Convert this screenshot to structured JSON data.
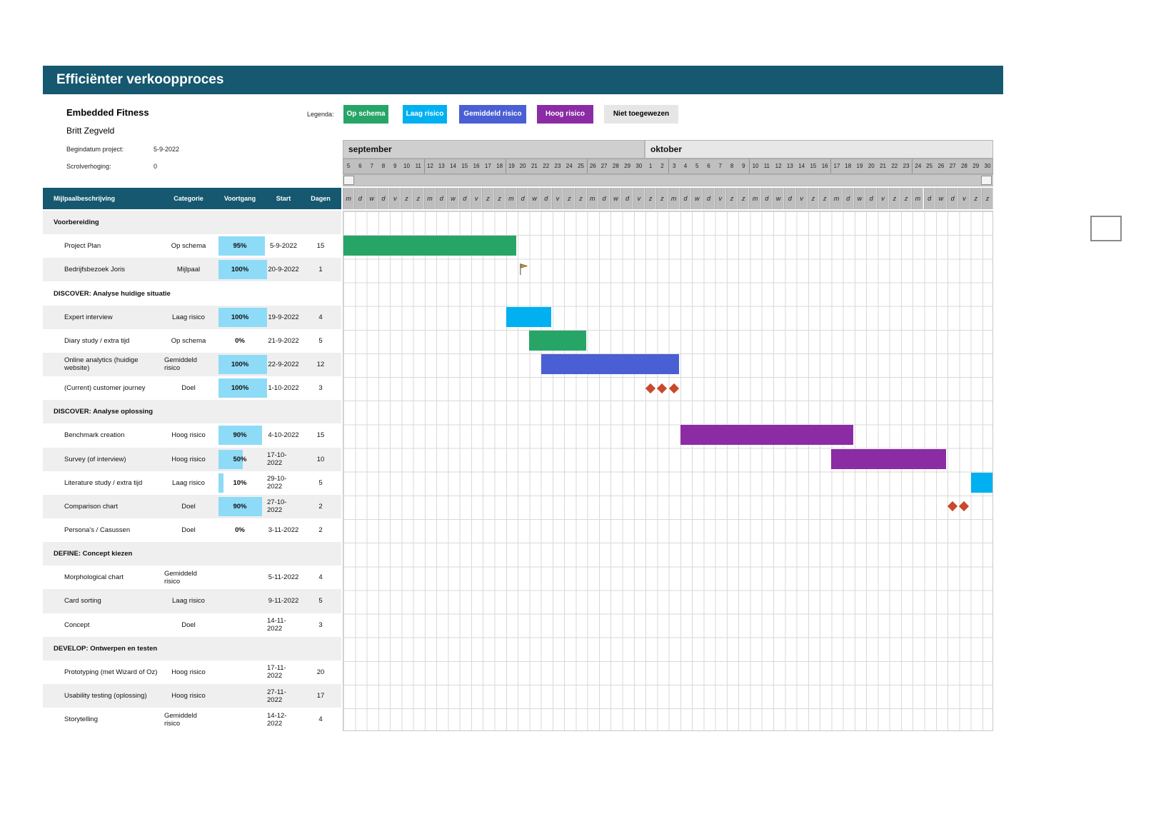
{
  "title": "Efficiënter verkoopproces",
  "project": {
    "company": "Embedded Fitness",
    "owner": "Britt Zegveld",
    "fields": [
      {
        "label": "Begindatum project:",
        "value": "5-9-2022"
      },
      {
        "label": "Scrolverhoging:",
        "value": "0"
      }
    ]
  },
  "legend": {
    "label": "Legenda:",
    "items": [
      {
        "label": "Op schema",
        "color": "#27A567",
        "text": "#FFFFFF"
      },
      {
        "label": "Laag risico",
        "color": "#00B0F0",
        "text": "#FFFFFF"
      },
      {
        "label": "Gemiddeld risico",
        "color": "#4A5FD4",
        "text": "#FFFFFF"
      },
      {
        "label": "Hoog risico",
        "color": "#8B2CA5",
        "text": "#FFFFFF"
      },
      {
        "label": "Niet toegewezen",
        "color": "#E6E6E6",
        "text": "#000000"
      }
    ]
  },
  "timeline": {
    "months": [
      {
        "name": "september",
        "days": 26
      },
      {
        "name": "oktober",
        "days": 30
      }
    ],
    "day_numbers": [
      5,
      6,
      7,
      8,
      9,
      10,
      11,
      12,
      13,
      14,
      15,
      16,
      17,
      18,
      19,
      20,
      21,
      22,
      23,
      24,
      25,
      26,
      27,
      28,
      29,
      30,
      1,
      2,
      3,
      4,
      5,
      6,
      7,
      8,
      9,
      10,
      11,
      12,
      13,
      14,
      15,
      16,
      17,
      18,
      19,
      20,
      21,
      22,
      23,
      24,
      25,
      26,
      27,
      28,
      29,
      30
    ],
    "weekday_letters": [
      "m",
      "d",
      "w",
      "d",
      "v",
      "z",
      "z"
    ]
  },
  "table": {
    "headers": [
      "Mijlpaalbeschrijving",
      "Categorie",
      "Voortgang",
      "Start",
      "Dagen"
    ],
    "rows": [
      {
        "type": "section",
        "name": "Voorbereiding"
      },
      {
        "type": "task",
        "name": "Project Plan",
        "category": "Op schema",
        "progress": 95,
        "start": "5-9-2022",
        "days": 15
      },
      {
        "type": "task",
        "name": "Bedrijfsbezoek Joris",
        "category": "Mijlpaal",
        "progress": 100,
        "start": "20-9-2022",
        "days": 1
      },
      {
        "type": "section",
        "name": "DISCOVER: Analyse huidige situatie"
      },
      {
        "type": "task",
        "name": "Expert interview",
        "category": "Laag risico",
        "progress": 100,
        "start": "19-9-2022",
        "days": 4
      },
      {
        "type": "task",
        "name": "Diary study / extra tijd",
        "category": "Op schema",
        "progress": 0,
        "start": "21-9-2022",
        "days": 5
      },
      {
        "type": "task",
        "name": "Online analytics (huidige website)",
        "category": "Gemiddeld risico",
        "progress": 100,
        "start": "22-9-2022",
        "days": 12
      },
      {
        "type": "task",
        "name": "(Current) customer journey",
        "category": "Doel",
        "progress": 100,
        "start": "1-10-2022",
        "days": 3
      },
      {
        "type": "section",
        "name": "DISCOVER: Analyse oplossing"
      },
      {
        "type": "task",
        "name": "Benchmark creation",
        "category": "Hoog risico",
        "progress": 90,
        "start": "4-10-2022",
        "days": 15
      },
      {
        "type": "task",
        "name": "Survey (of interview)",
        "category": "Hoog risico",
        "progress": 50,
        "start": "17-10-2022",
        "days": 10
      },
      {
        "type": "task",
        "name": "Literature study / extra tijd",
        "category": "Laag risico",
        "progress": 10,
        "start": "29-10-2022",
        "days": 5
      },
      {
        "type": "task",
        "name": "Comparison chart",
        "category": "Doel",
        "progress": 90,
        "start": "27-10-2022",
        "days": 2
      },
      {
        "type": "task",
        "name": "Persona's / Casussen",
        "category": "Doel",
        "progress": 0,
        "start": "3-11-2022",
        "days": 2
      },
      {
        "type": "section",
        "name": "DEFINE: Concept kiezen"
      },
      {
        "type": "task",
        "name": "Morphological chart",
        "category": "Gemiddeld risico",
        "progress": null,
        "start": "5-11-2022",
        "days": 4
      },
      {
        "type": "task",
        "name": "Card sorting",
        "category": "Laag risico",
        "progress": null,
        "start": "9-11-2022",
        "days": 5
      },
      {
        "type": "task",
        "name": "Concept",
        "category": "Doel",
        "progress": null,
        "start": "14-11-2022",
        "days": 3
      },
      {
        "type": "section",
        "name": "DEVELOP: Ontwerpen en testen"
      },
      {
        "type": "task",
        "name": "Prototyping (met Wizard of Oz)",
        "category": "Hoog risico",
        "progress": null,
        "start": "17-11-2022",
        "days": 20
      },
      {
        "type": "task",
        "name": "Usability testing (oplossing)",
        "category": "Hoog risico",
        "progress": null,
        "start": "27-11-2022",
        "days": 17
      },
      {
        "type": "task",
        "name": "Storytelling",
        "category": "Gemiddeld risico",
        "progress": null,
        "start": "14-12-2022",
        "days": 4
      }
    ]
  },
  "gantt": {
    "chart_start_date": "5-9-2022",
    "category_styles": {
      "Op schema": {
        "color": "#27A567",
        "marker": "bar"
      },
      "Laag risico": {
        "color": "#00B0F0",
        "marker": "bar"
      },
      "Gemiddeld risico": {
        "color": "#4A5FD4",
        "marker": "bar"
      },
      "Hoog risico": {
        "color": "#8B2CA5",
        "marker": "bar"
      },
      "Mijlpaal": {
        "color": "#C9962B",
        "marker": "flag"
      },
      "Doel": {
        "color": "#C8492C",
        "marker": "diamond"
      },
      "Niet toegewezen": {
        "color": "#E6E6E6",
        "marker": "bar"
      }
    },
    "progress_fill_color": "#8EDBF7"
  },
  "colors": {
    "banner": "#15586F",
    "table_header": "#15586F",
    "row_stripe": "#EFEFEF",
    "grid_line": "#D9D9D9",
    "month_band_september": "#CFCFCF",
    "month_band_oktober": "#E7E7E7",
    "day_row": "#BFBFBF",
    "scroll_row": "#C7C7C7"
  }
}
